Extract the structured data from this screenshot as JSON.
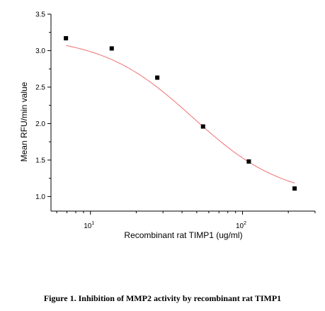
{
  "chart_data": {
    "type": "scatter",
    "xlabel": "Recombinant rat TIMP1 (ug/ml)",
    "ylabel": "Mean RFU/min value",
    "xscale": "log",
    "xlim": [
      5.5,
      300
    ],
    "ylim": [
      0.8,
      3.5
    ],
    "x_tick_labels": [
      {
        "base": "10",
        "exp": "1",
        "value": 10
      },
      {
        "base": "10",
        "exp": "2",
        "value": 100
      }
    ],
    "y_ticks": [
      "1.0",
      "1.5",
      "2.0",
      "2.5",
      "3.0",
      "3.5"
    ],
    "series": [
      {
        "marker": "square",
        "marker_color": "#000000",
        "x": [
          6.9,
          13.8,
          27.5,
          55,
          110,
          220
        ],
        "y": [
          3.17,
          3.03,
          2.63,
          1.96,
          1.48,
          1.11
        ]
      }
    ],
    "fit_curve": {
      "color": "#f07070",
      "top": 3.2,
      "bottom": 0.97,
      "ec50": 47,
      "hill": 1.45
    },
    "grid": false,
    "legend": "none"
  },
  "caption": "Figure 1. Inhibition of MMP2 activity by recombinant rat TIMP1"
}
